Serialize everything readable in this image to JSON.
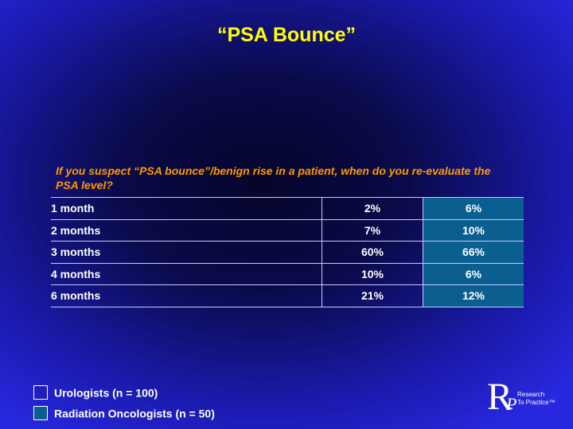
{
  "title": "“PSA Bounce”",
  "question": "If you suspect “PSA bounce”/benign rise in a patient, when do you re-evaluate the PSA level?",
  "rows": [
    {
      "label": "1 month",
      "urologists": "2%",
      "radiation": "6%"
    },
    {
      "label": "2 months",
      "urologists": "7%",
      "radiation": "10%"
    },
    {
      "label": "3 months",
      "urologists": "60%",
      "radiation": "66%"
    },
    {
      "label": "4 months",
      "urologists": "10%",
      "radiation": "6%"
    },
    {
      "label": "6 months",
      "urologists": "21%",
      "radiation": "12%"
    }
  ],
  "legend": {
    "urologists": "Urologists  (n = 100)",
    "radiation": "Radiation Oncologists  (n = 50)"
  },
  "logo": {
    "letter_r": "R",
    "letter_p": "P",
    "line1": "Research",
    "line2": "To Practice™"
  },
  "colors": {
    "title": "#ffff00",
    "question": "#ff9900",
    "urologists_swatch": "#1f1fbf",
    "radiation_swatch": "#0b5e90"
  }
}
